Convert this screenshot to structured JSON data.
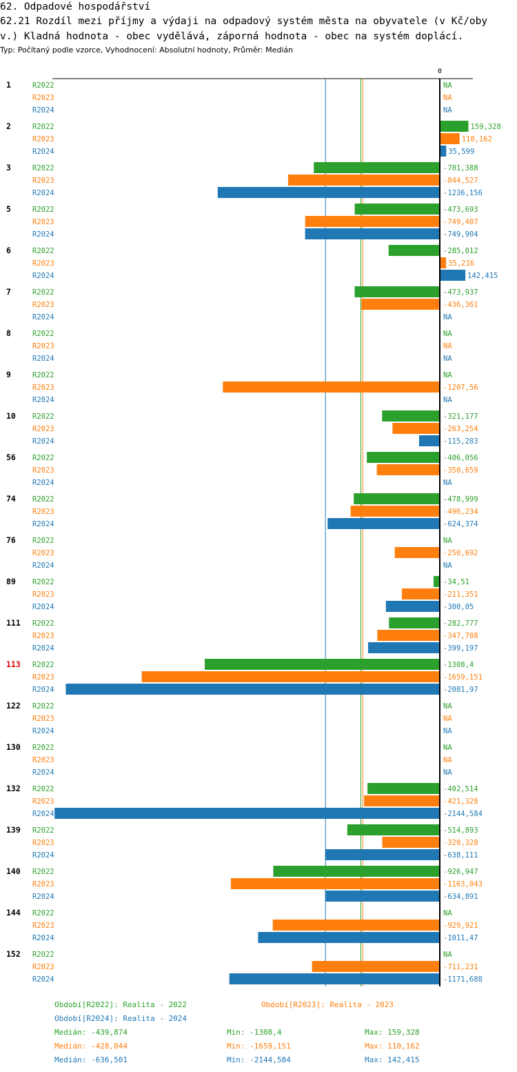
{
  "header": {
    "section": "62. Odpadové hospodářství",
    "title_line1": "62.21 Rozdíl mezi příjmy a výdaji na odpadový systém města na obyvatele (v Kč/oby",
    "title_line2": "v.) Kladná hodnota - obec vydělává, záporná hodnota - obec na systém doplácí.",
    "meta": "Typ: Počítaný podle vzorce, Vyhodnocení: Absolutní hodnoty, Průměr: Medián"
  },
  "colors": {
    "R2022": "#2ca02c",
    "R2023": "#ff7f0e",
    "R2024": "#1f77b4",
    "highlight": "#dd0000",
    "axis": "#000000"
  },
  "chart_data": {
    "type": "bar",
    "orientation": "horizontal",
    "zero_label": "0",
    "na_label": "NA",
    "highlight_group": "113",
    "xlim": [
      -2220,
      225
    ],
    "series_names": [
      "R2022",
      "R2023",
      "R2024"
    ],
    "groups": [
      {
        "id": "1",
        "values": [
          null,
          null,
          null
        ],
        "labels": [
          "NA",
          "NA",
          "NA"
        ]
      },
      {
        "id": "2",
        "values": [
          159.328,
          110.162,
          35.599
        ],
        "labels": [
          "159,328",
          "110,162",
          "35,599"
        ]
      },
      {
        "id": "3",
        "values": [
          -701.388,
          -844.527,
          -1236.156
        ],
        "labels": [
          "-701,388",
          "-844,527",
          "-1236,156"
        ]
      },
      {
        "id": "5",
        "values": [
          -473.693,
          -749.407,
          -749.904
        ],
        "labels": [
          "-473,693",
          "-749,407",
          "-749,904"
        ]
      },
      {
        "id": "6",
        "values": [
          -285.012,
          35.216,
          142.415
        ],
        "labels": [
          "-285,012",
          "35,216",
          "142,415"
        ]
      },
      {
        "id": "7",
        "values": [
          -473.937,
          -436.361,
          null
        ],
        "labels": [
          "-473,937",
          "-436,361",
          "NA"
        ]
      },
      {
        "id": "8",
        "values": [
          null,
          null,
          null
        ],
        "labels": [
          "NA",
          "NA",
          "NA"
        ]
      },
      {
        "id": "9",
        "values": [
          null,
          -1207.56,
          null
        ],
        "labels": [
          "NA",
          "-1207,56",
          "NA"
        ]
      },
      {
        "id": "10",
        "values": [
          -321.177,
          -263.254,
          -115.283
        ],
        "labels": [
          "-321,177",
          "-263,254",
          "-115,283"
        ]
      },
      {
        "id": "56",
        "values": [
          -406.056,
          -350.659,
          null
        ],
        "labels": [
          "-406,056",
          "-350,659",
          "NA"
        ]
      },
      {
        "id": "74",
        "values": [
          -478.999,
          -496.234,
          -624.374
        ],
        "labels": [
          "-478,999",
          "-496,234",
          "-624,374"
        ]
      },
      {
        "id": "76",
        "values": [
          null,
          -250.692,
          null
        ],
        "labels": [
          "NA",
          "-250,692",
          "NA"
        ]
      },
      {
        "id": "89",
        "values": [
          -34.51,
          -211.351,
          -300.05
        ],
        "labels": [
          "-34,51",
          "-211,351",
          "-300,05"
        ]
      },
      {
        "id": "111",
        "values": [
          -282.777,
          -347.788,
          -399.197
        ],
        "labels": [
          "-282,777",
          "-347,788",
          "-399,197"
        ]
      },
      {
        "id": "113",
        "values": [
          -1308.4,
          -1659.151,
          -2081.97
        ],
        "labels": [
          "-1308,4",
          "-1659,151",
          "-2081,97"
        ]
      },
      {
        "id": "122",
        "values": [
          null,
          null,
          null
        ],
        "labels": [
          "NA",
          "NA",
          "NA"
        ]
      },
      {
        "id": "130",
        "values": [
          null,
          null,
          null
        ],
        "labels": [
          "NA",
          "NA",
          "NA"
        ]
      },
      {
        "id": "132",
        "values": [
          -402.514,
          -421.328,
          -2144.584
        ],
        "labels": [
          "-402,514",
          "-421,328",
          "-2144,584"
        ]
      },
      {
        "id": "139",
        "values": [
          -514.893,
          -320.328,
          -638.111
        ],
        "labels": [
          "-514,893",
          "-320,328",
          "-638,111"
        ]
      },
      {
        "id": "140",
        "values": [
          -926.947,
          -1163.043,
          -634.891
        ],
        "labels": [
          "-926,947",
          "-1163,043",
          "-634,891"
        ]
      },
      {
        "id": "144",
        "values": [
          null,
          -929.921,
          -1011.47
        ],
        "labels": [
          "NA",
          "-929,921",
          "-1011,47"
        ]
      },
      {
        "id": "152",
        "values": [
          null,
          -711.231,
          -1171.688
        ],
        "labels": [
          "NA",
          "-711,231",
          "-1171,688"
        ]
      }
    ],
    "median_lines": [
      {
        "series": "R2022",
        "value": -439.874
      },
      {
        "series": "R2023",
        "value": -428.844
      },
      {
        "series": "R2024",
        "value": -636.501
      }
    ]
  },
  "legend": {
    "periods": [
      {
        "series": "R2022",
        "text": "Období[R2022]: Realita - 2022"
      },
      {
        "series": "R2023",
        "text": "Období[R2023]: Realita - 2023"
      },
      {
        "series": "R2024",
        "text": "Období[R2024]: Realita - 2024"
      }
    ],
    "stats": [
      {
        "series": "R2022",
        "median": "Medián: -439,874",
        "min": "Min: -1308,4",
        "max": "Max: 159,328"
      },
      {
        "series": "R2023",
        "median": "Medián: -428,844",
        "min": "Min: -1659,151",
        "max": "Max: 110,162"
      },
      {
        "series": "R2024",
        "median": "Medián: -636,501",
        "min": "Min: -2144,584",
        "max": "Max: 142,415"
      }
    ]
  }
}
